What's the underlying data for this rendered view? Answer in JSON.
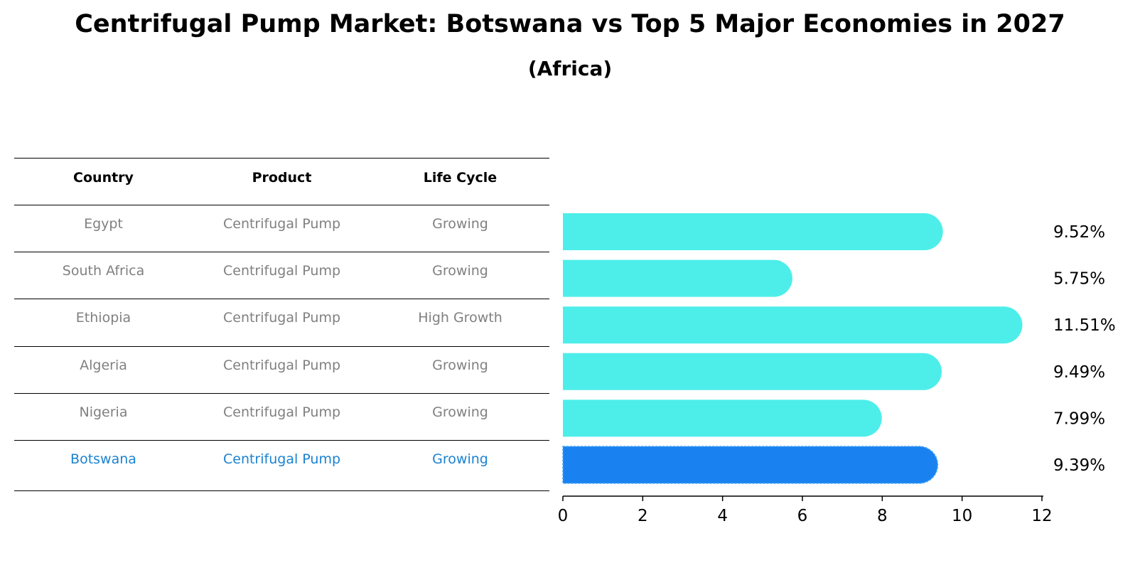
{
  "title": "Centrifugal Pump Market: Botswana vs Top 5 Major Economies in 2027",
  "subtitle": "(Africa)",
  "table": {
    "headers": [
      "Country",
      "Product",
      "Life Cycle"
    ],
    "rows": [
      {
        "country": "Egypt",
        "product": "Centrifugal Pump",
        "life_cycle": "Growing"
      },
      {
        "country": "South Africa",
        "product": "Centrifugal Pump",
        "life_cycle": "Growing"
      },
      {
        "country": "Ethiopia",
        "product": "Centrifugal Pump",
        "life_cycle": "High Growth"
      },
      {
        "country": "Algeria",
        "product": "Centrifugal Pump",
        "life_cycle": "Growing"
      },
      {
        "country": "Nigeria",
        "product": "Centrifugal Pump",
        "life_cycle": "Growing"
      },
      {
        "country": "Botswana",
        "product": "Centrifugal Pump",
        "life_cycle": "Growing"
      }
    ]
  },
  "chart_data": {
    "type": "bar",
    "orientation": "horizontal",
    "categories": [
      "Egypt",
      "South Africa",
      "Ethiopia",
      "Algeria",
      "Nigeria",
      "Botswana"
    ],
    "values": [
      9.52,
      5.75,
      11.51,
      9.49,
      7.99,
      9.39
    ],
    "value_labels": [
      "9.52%",
      "5.75%",
      "11.51%",
      "9.49%",
      "7.99%",
      "9.39%"
    ],
    "highlight": "Botswana",
    "xlim": [
      0,
      12
    ],
    "xticks": [
      0,
      2,
      4,
      6,
      8,
      10,
      12
    ],
    "xtick_labels": [
      "0",
      "2",
      "4",
      "6",
      "8",
      "10",
      "12"
    ],
    "xlabel": "",
    "ylabel": "",
    "colors": {
      "default": "#4deeea",
      "highlight": "#1a82f0"
    }
  },
  "colors": {
    "text_muted": "#808080",
    "text_highlight": "#1a82d1"
  }
}
